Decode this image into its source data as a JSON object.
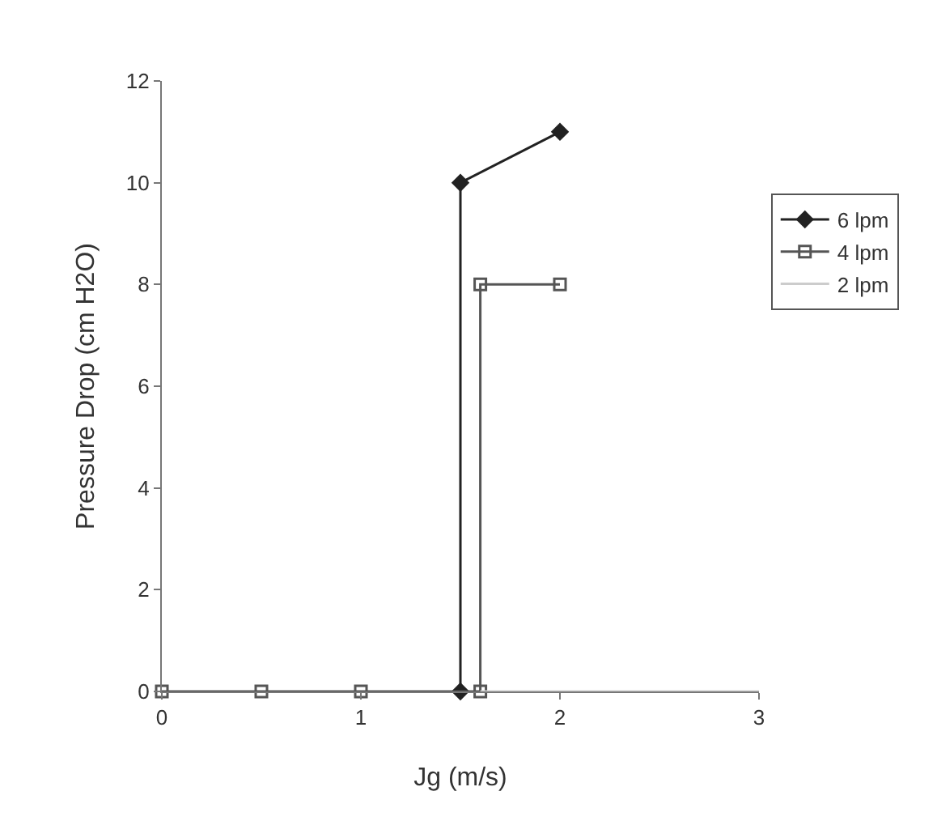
{
  "chart_data": {
    "type": "line",
    "xlabel": "Jg (m/s)",
    "ylabel": "Pressure Drop (cm H2O)",
    "xlim": [
      0,
      3
    ],
    "xticks": [
      0,
      1,
      2,
      3
    ],
    "ylim": [
      0,
      12
    ],
    "yticks": [
      0,
      2,
      4,
      6,
      8,
      10,
      12
    ],
    "grid": false,
    "legend": "right",
    "series": [
      {
        "name": "6 lpm",
        "color": "#222222",
        "marker": "diamond",
        "x": [
          1.5,
          1.5,
          2
        ],
        "values": [
          0,
          10,
          11
        ]
      },
      {
        "name": "4 lpm",
        "color": "#555555",
        "marker": "square",
        "x": [
          0,
          0.5,
          1,
          1.6,
          1.6,
          2
        ],
        "values": [
          0,
          0,
          0,
          0,
          8,
          8
        ]
      },
      {
        "name": "2 lpm",
        "color": "#cccccc",
        "marker": "none",
        "x": [
          1.6,
          2,
          2.5,
          3
        ],
        "values": [
          0,
          0,
          0,
          0
        ]
      }
    ]
  }
}
